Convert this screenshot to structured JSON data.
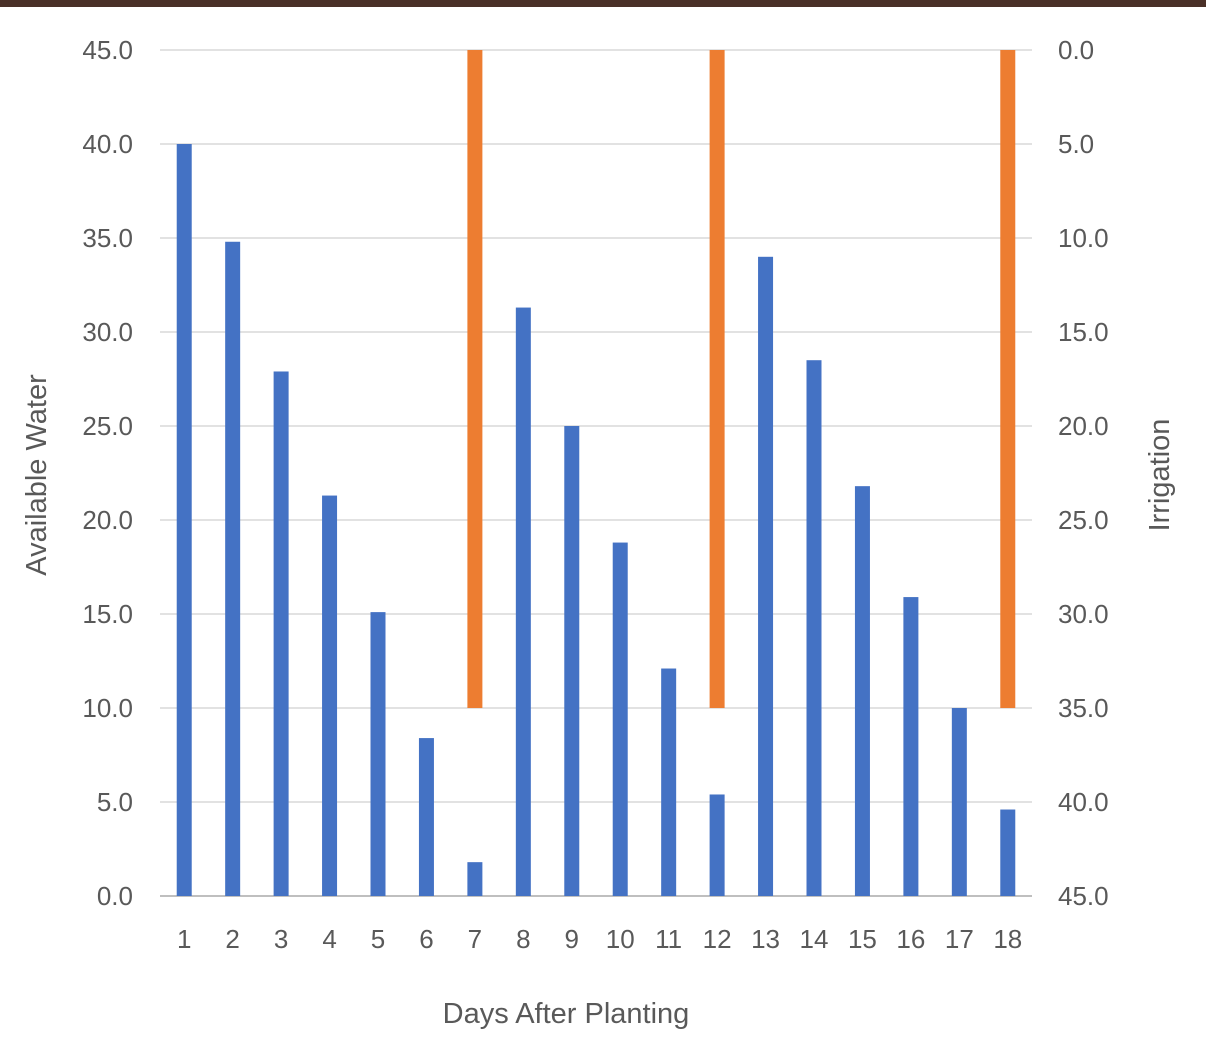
{
  "chart_data": {
    "type": "bar",
    "title": "",
    "xlabel": "Days After Planting",
    "ylabel": "Available Water",
    "y2label": "Irrigation",
    "categories": [
      "1",
      "2",
      "3",
      "4",
      "5",
      "6",
      "7",
      "8",
      "9",
      "10",
      "11",
      "12",
      "13",
      "14",
      "15",
      "16",
      "17",
      "18"
    ],
    "ylim": [
      0,
      45
    ],
    "y2lim": [
      0,
      45
    ],
    "y2_reversed": true,
    "yticks": [
      "0.0",
      "5.0",
      "10.0",
      "15.0",
      "20.0",
      "25.0",
      "30.0",
      "35.0",
      "40.0",
      "45.0"
    ],
    "y2ticks": [
      "0.0",
      "5.0",
      "10.0",
      "15.0",
      "20.0",
      "25.0",
      "30.0",
      "35.0",
      "40.0",
      "45.0"
    ],
    "grid": true,
    "legend": "none",
    "series": [
      {
        "axis": "left",
        "color": "#4472c4",
        "values": [
          40.0,
          34.8,
          27.9,
          21.3,
          15.1,
          8.4,
          1.8,
          31.3,
          25.0,
          18.8,
          12.1,
          5.4,
          34.0,
          28.5,
          21.8,
          15.9,
          10.0,
          4.6
        ]
      },
      {
        "axis": "right",
        "color": "#ed7d31",
        "values": [
          0,
          0,
          0,
          0,
          0,
          0,
          35.0,
          0,
          0,
          0,
          0,
          35.0,
          0,
          0,
          0,
          0,
          0,
          35.0
        ]
      }
    ]
  },
  "frame": {
    "border_color": "#4a3028"
  }
}
